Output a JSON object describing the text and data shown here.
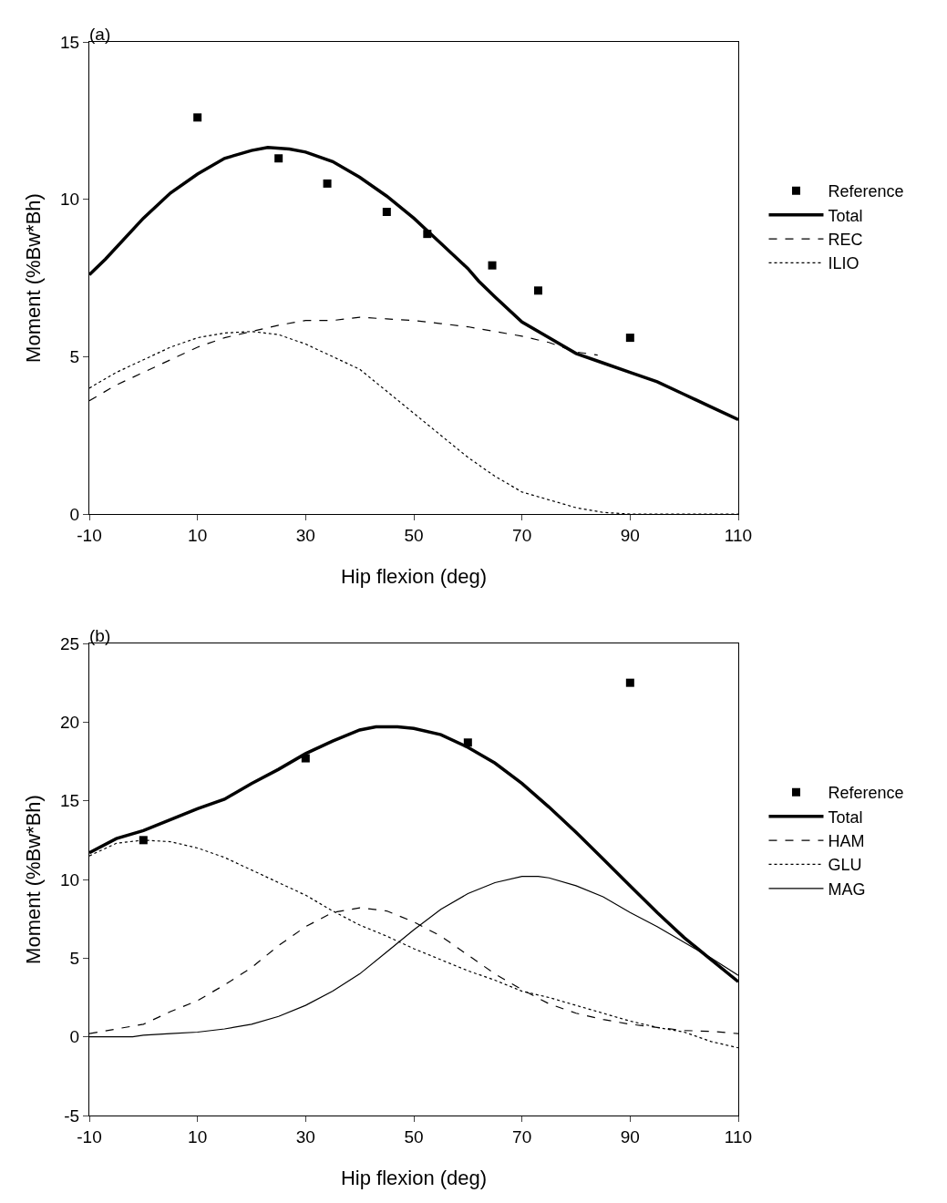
{
  "chart_data": [
    {
      "type": "line",
      "title": "(a)",
      "xlabel": "Hip flexion (deg)",
      "ylabel": "Moment (%Bw*Bh)",
      "xlim": [
        -10,
        110
      ],
      "xticks": [
        -10,
        10,
        30,
        50,
        70,
        90,
        110
      ],
      "ylim": [
        0,
        15
      ],
      "yticks": [
        0,
        5,
        10,
        15
      ],
      "grid": false,
      "legend": "right",
      "series": [
        {
          "name": "Reference",
          "type": "scatter",
          "marker": "square",
          "color": "#000000",
          "x": [
            10,
            25,
            34,
            45,
            52.5,
            64.5,
            73,
            90
          ],
          "values": [
            12.6,
            11.3,
            10.5,
            9.6,
            8.9,
            7.9,
            7.1,
            5.6
          ]
        },
        {
          "name": "Total",
          "type": "line",
          "line_style": "solid",
          "color": "#000000",
          "x": [
            -10,
            -7,
            0,
            5,
            10,
            15,
            20,
            23,
            27,
            30,
            35,
            40,
            45,
            50,
            55,
            60,
            62,
            65,
            70,
            75,
            80,
            85,
            90,
            95,
            100,
            105,
            110
          ],
          "values": [
            7.6,
            8.1,
            9.4,
            10.2,
            10.8,
            11.3,
            11.55,
            11.65,
            11.6,
            11.5,
            11.2,
            10.7,
            10.1,
            9.4,
            8.6,
            7.8,
            7.4,
            6.9,
            6.1,
            5.6,
            5.1,
            4.8,
            4.5,
            4.2,
            3.8,
            3.4,
            3.0
          ]
        },
        {
          "name": "REC",
          "type": "line",
          "line_style": "dashed",
          "color": "#000000",
          "x": [
            -10,
            -5,
            0,
            5,
            10,
            15,
            20,
            25,
            30,
            35,
            40,
            45,
            50,
            55,
            60,
            65,
            70,
            75,
            80,
            84
          ],
          "values": [
            3.6,
            4.1,
            4.5,
            4.9,
            5.3,
            5.6,
            5.8,
            6.0,
            6.15,
            6.15,
            6.25,
            6.2,
            6.15,
            6.05,
            5.95,
            5.8,
            5.65,
            5.45,
            5.15,
            5.05
          ]
        },
        {
          "name": "ILIO",
          "type": "line",
          "line_style": "dotted",
          "color": "#000000",
          "x": [
            -10,
            -5,
            0,
            5,
            10,
            15,
            20,
            25,
            30,
            35,
            40,
            45,
            50,
            55,
            60,
            65,
            70,
            75,
            80,
            85,
            90,
            100,
            110
          ],
          "values": [
            4.0,
            4.5,
            4.9,
            5.3,
            5.6,
            5.75,
            5.8,
            5.7,
            5.4,
            5.0,
            4.6,
            3.9,
            3.2,
            2.5,
            1.8,
            1.2,
            0.7,
            0.45,
            0.2,
            0.05,
            0,
            0,
            0
          ]
        }
      ]
    },
    {
      "type": "line",
      "title": "(b)",
      "xlabel": "Hip flexion (deg)",
      "ylabel": "Moment (%Bw*Bh)",
      "xlim": [
        -10,
        110
      ],
      "xticks": [
        -10,
        10,
        30,
        50,
        70,
        90,
        110
      ],
      "ylim": [
        -5,
        25
      ],
      "yticks": [
        -5,
        0,
        5,
        10,
        15,
        20,
        25
      ],
      "grid": false,
      "legend": "right",
      "series": [
        {
          "name": "Reference",
          "type": "scatter",
          "marker": "square",
          "color": "#000000",
          "x": [
            0,
            30,
            60,
            90
          ],
          "values": [
            12.5,
            17.7,
            18.7,
            22.5
          ]
        },
        {
          "name": "Total",
          "type": "line",
          "line_style": "solid",
          "color": "#000000",
          "x": [
            -10,
            -5,
            0,
            5,
            10,
            15,
            20,
            25,
            30,
            35,
            40,
            43,
            47,
            50,
            55,
            60,
            65,
            70,
            75,
            80,
            85,
            90,
            95,
            100,
            105,
            110
          ],
          "values": [
            11.7,
            12.6,
            13.1,
            13.8,
            14.5,
            15.1,
            16.1,
            17.0,
            18.0,
            18.8,
            19.5,
            19.7,
            19.7,
            19.6,
            19.2,
            18.4,
            17.4,
            16.1,
            14.6,
            13.0,
            11.3,
            9.6,
            7.9,
            6.3,
            4.9,
            3.5
          ]
        },
        {
          "name": "HAM",
          "type": "line",
          "line_style": "dashed",
          "color": "#000000",
          "x": [
            -10,
            -5,
            0,
            5,
            10,
            15,
            20,
            25,
            30,
            35,
            40,
            45,
            50,
            55,
            60,
            65,
            70,
            75,
            80,
            85,
            90,
            95,
            100,
            105,
            110
          ],
          "values": [
            0.2,
            0.5,
            0.8,
            1.6,
            2.3,
            3.3,
            4.4,
            5.8,
            7.0,
            7.9,
            8.2,
            8.0,
            7.3,
            6.4,
            5.2,
            4.0,
            3.0,
            2.1,
            1.5,
            1.1,
            0.8,
            0.6,
            0.4,
            0.35,
            0.2
          ]
        },
        {
          "name": "GLU",
          "type": "line",
          "line_style": "dotted",
          "color": "#000000",
          "x": [
            -10,
            -5,
            0,
            5,
            10,
            15,
            20,
            25,
            30,
            35,
            40,
            45,
            50,
            55,
            60,
            65,
            70,
            75,
            80,
            85,
            90,
            95,
            100,
            105,
            110
          ],
          "values": [
            11.5,
            12.3,
            12.5,
            12.4,
            12.0,
            11.4,
            10.6,
            9.8,
            9.0,
            8.0,
            7.1,
            6.4,
            5.6,
            4.9,
            4.2,
            3.6,
            2.9,
            2.5,
            2.0,
            1.5,
            1.0,
            0.6,
            0.3,
            -0.3,
            -0.7
          ]
        },
        {
          "name": "MAG",
          "type": "line",
          "line_style": "solid",
          "color": "#000000",
          "x": [
            -10,
            -2,
            0,
            5,
            10,
            15,
            20,
            25,
            30,
            35,
            40,
            45,
            50,
            55,
            60,
            65,
            70,
            73,
            75,
            80,
            85,
            90,
            95,
            100,
            105,
            110
          ],
          "values": [
            0,
            0,
            0.1,
            0.2,
            0.3,
            0.5,
            0.8,
            1.3,
            2.0,
            2.9,
            4.0,
            5.4,
            6.8,
            8.1,
            9.1,
            9.8,
            10.2,
            10.2,
            10.1,
            9.6,
            8.9,
            7.9,
            7.0,
            6.0,
            5.0,
            3.9
          ]
        }
      ]
    }
  ]
}
